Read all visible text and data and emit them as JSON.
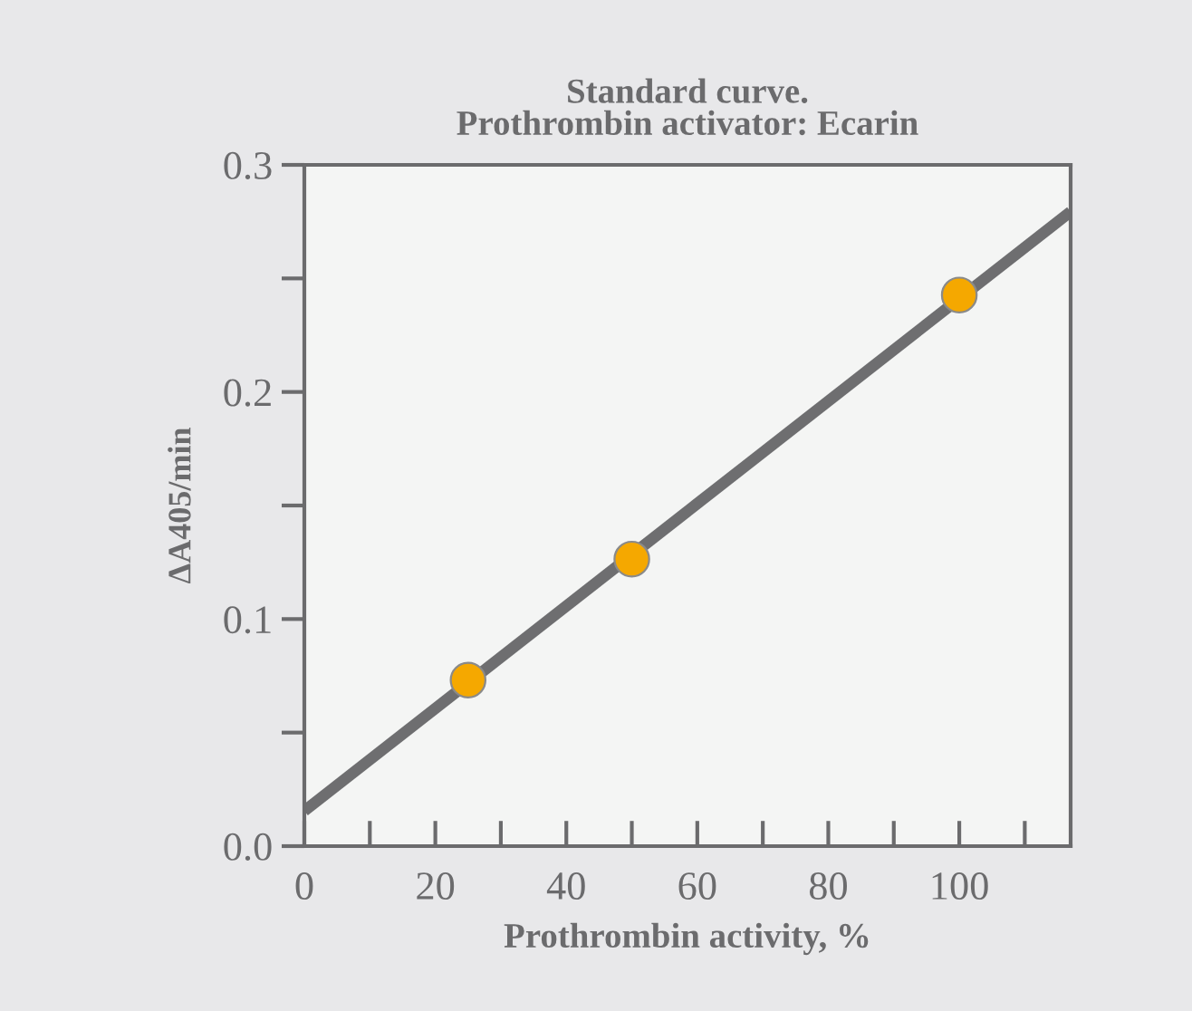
{
  "chart_data": {
    "type": "scatter",
    "title": "Standard curve.\nProthrombin activator: Ecarin",
    "xlabel": "Prothrombin activity, %",
    "ylabel": "ΔA405/min",
    "series": [
      {
        "type": "line",
        "x": [
          0,
          117
        ],
        "values": [
          0.0155,
          0.2794
        ],
        "color": "#6e6e70",
        "marker": "none",
        "line_style": "solid"
      },
      {
        "x": [
          25,
          50,
          100
        ],
        "values": [
          0.0731,
          0.1264,
          0.2427
        ],
        "color": "#f5a800",
        "marker": "circle"
      }
    ],
    "xlim": [
      0,
      117
    ],
    "ylim": [
      0,
      0.3
    ],
    "xticks": [
      0,
      {
        "value": 10,
        "label": null
      },
      20,
      {
        "value": 30,
        "label": null
      },
      40,
      {
        "value": 50,
        "label": null
      },
      60,
      {
        "value": 70,
        "label": null
      },
      80,
      {
        "value": 90,
        "label": null
      },
      100,
      {
        "value": 110,
        "label": null
      }
    ],
    "yticks": [
      {
        "value": 0,
        "label": "0.0"
      },
      {
        "value": 0.05,
        "label": null
      },
      0.1,
      {
        "value": 0.15,
        "label": null
      },
      0.2,
      {
        "value": 0.25,
        "label": null
      },
      0.3
    ],
    "grid": false,
    "legend": false
  }
}
